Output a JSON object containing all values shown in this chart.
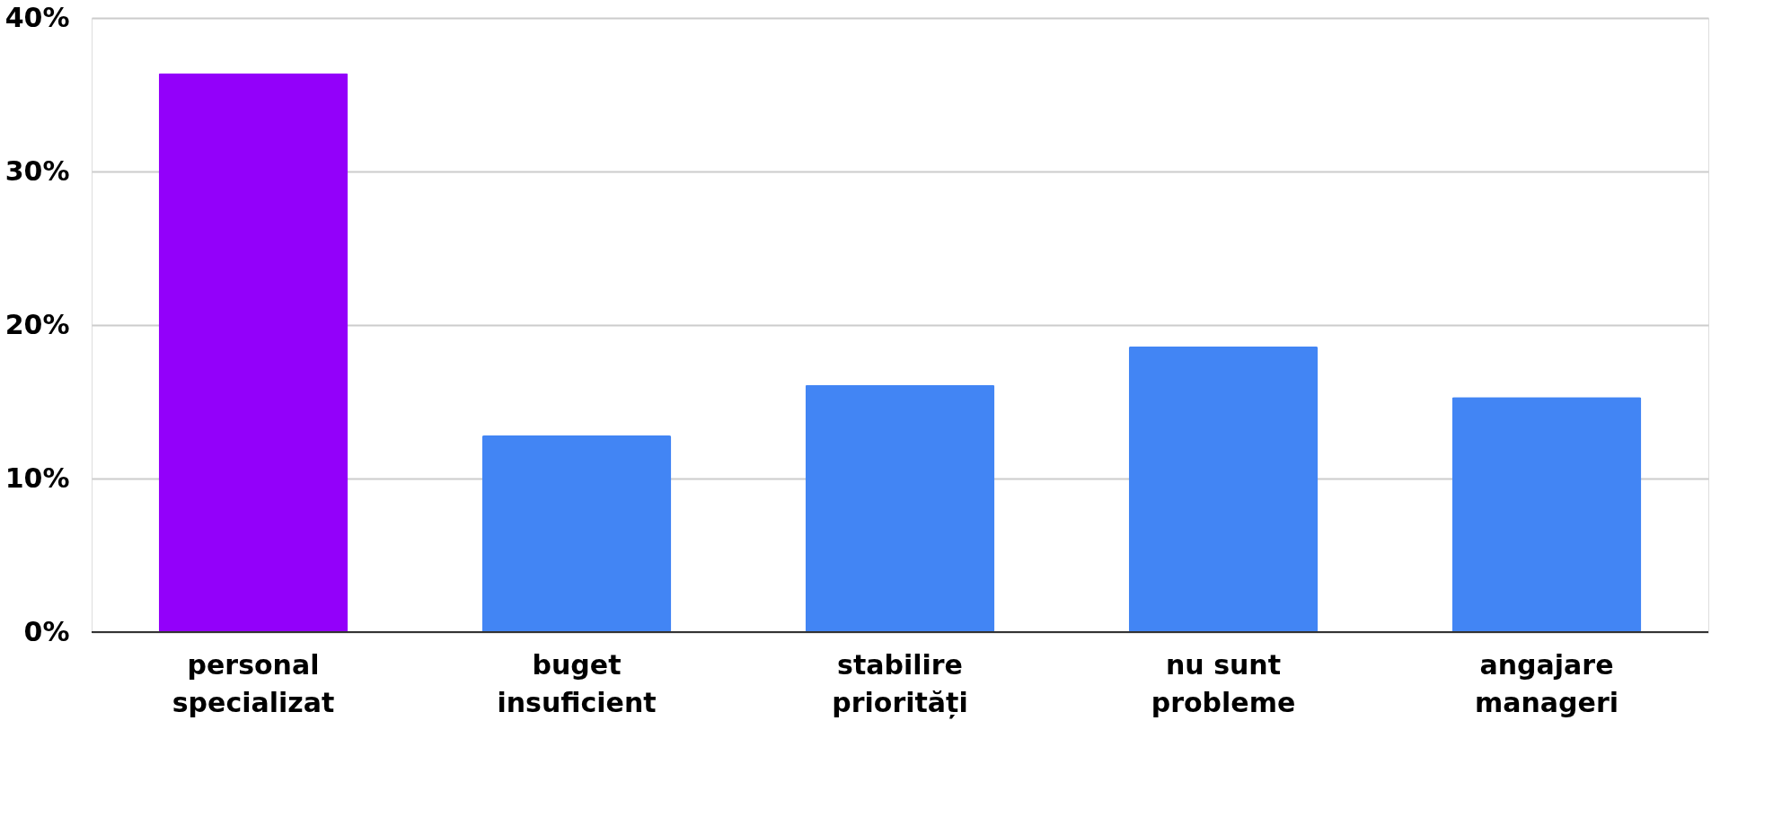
{
  "chart_data": {
    "type": "bar",
    "categories": [
      "personal specializat",
      "buget insuficient",
      "stabilire priorități",
      "nu sunt probleme",
      "angajare manageri"
    ],
    "values": [
      36.4,
      12.8,
      16.1,
      18.6,
      15.3
    ],
    "colors": [
      "#9300fa",
      "#4285f4",
      "#4285f4",
      "#4285f4",
      "#4285f4"
    ],
    "ylim": [
      0,
      40
    ],
    "yticks": [
      {
        "value": 0,
        "label": "0%"
      },
      {
        "value": 10,
        "label": "10%"
      },
      {
        "value": 20,
        "label": "20%"
      },
      {
        "value": 30,
        "label": "30%"
      },
      {
        "value": 40,
        "label": "40%"
      }
    ],
    "grid": "y"
  }
}
